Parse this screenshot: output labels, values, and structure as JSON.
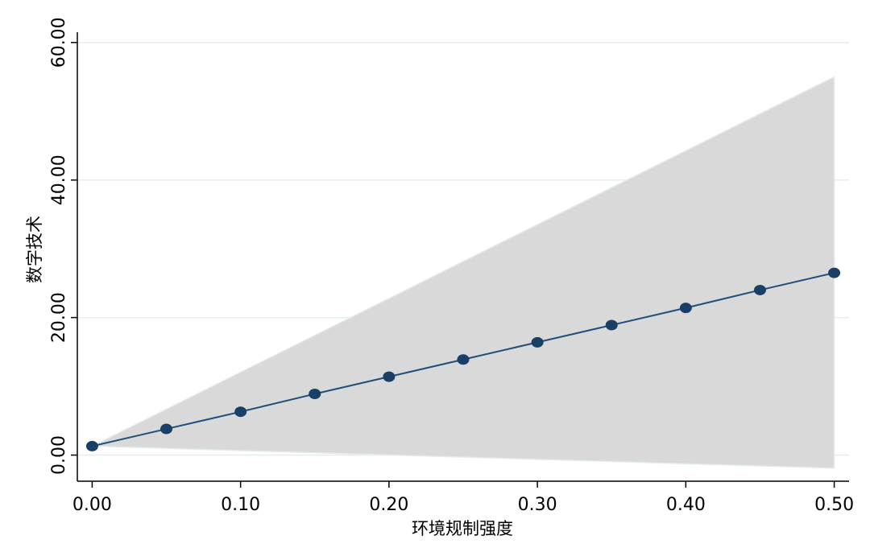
{
  "chart_data": {
    "type": "line",
    "xlabel": "环境规制强度",
    "ylabel": "数字技术",
    "xlim": [
      -0.01,
      0.51
    ],
    "ylim": [
      -3.8,
      61.5
    ],
    "x_ticks": [
      0.0,
      0.1,
      0.2,
      0.3,
      0.4,
      0.5
    ],
    "x_tick_labels": [
      "0.00",
      "0.10",
      "0.20",
      "0.30",
      "0.40",
      "0.50"
    ],
    "y_ticks": [
      0,
      20,
      40,
      60
    ],
    "y_tick_labels": [
      "0.00",
      "20.00",
      "40.00",
      "60.00"
    ],
    "grid": true,
    "legend": "none",
    "series": [
      {
        "type": "line",
        "x": [
          0.0,
          0.05,
          0.1,
          0.15,
          0.2,
          0.25,
          0.3,
          0.35,
          0.4,
          0.45,
          0.5
        ],
        "y": [
          1.3,
          3.8,
          6.3,
          8.9,
          11.4,
          13.9,
          16.4,
          18.9,
          21.4,
          24.0,
          26.5
        ]
      }
    ],
    "confidence_band": {
      "x": [
        0.0,
        0.5
      ],
      "upper": [
        1.3,
        55.0
      ],
      "lower": [
        1.3,
        -1.9
      ]
    },
    "colors": {
      "line": "#1f4e79",
      "marker": "#1a3f66",
      "band": "#d9d9d9",
      "band_edge": "#e2ecea",
      "grid": "#e4eeec",
      "axis": "#000000"
    }
  }
}
